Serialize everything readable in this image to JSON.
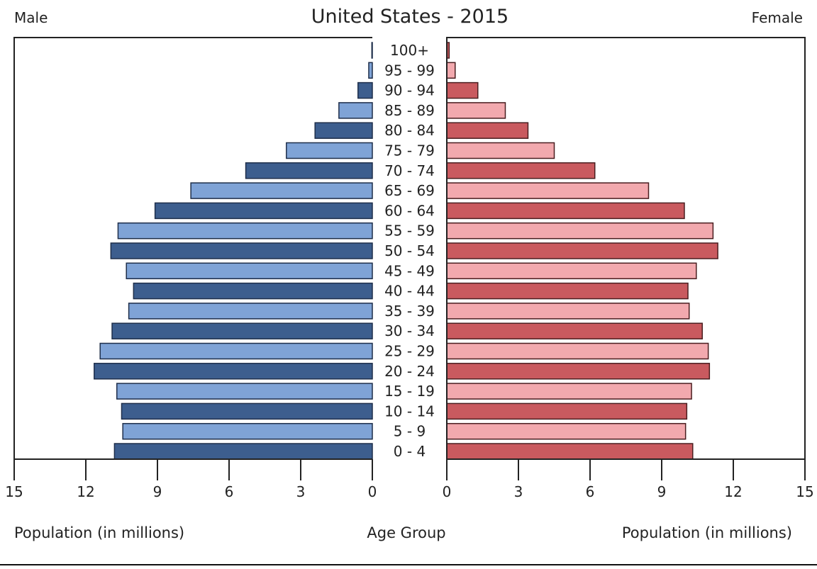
{
  "chart_data": {
    "type": "bar",
    "subtype": "population-pyramid",
    "title": "United States - 2015",
    "left_label": "Male",
    "right_label": "Female",
    "xlabel_left": "Population (in millions)",
    "xlabel_center": "Age Group",
    "xlabel_right": "Population (in millions)",
    "xlim": [
      0,
      15
    ],
    "xticks": [
      "0",
      "3",
      "6",
      "9",
      "12",
      "15"
    ],
    "categories": [
      "0 - 4",
      "5 - 9",
      "10 - 14",
      "15 - 19",
      "20 - 24",
      "25 - 29",
      "30 - 34",
      "35 - 39",
      "40 - 44",
      "45 - 49",
      "50 - 54",
      "55 - 59",
      "60 - 64",
      "65 - 69",
      "70 - 74",
      "75 - 79",
      "80 - 84",
      "85 - 89",
      "90 - 94",
      "95 - 99",
      "100+"
    ],
    "series": [
      {
        "side": "left",
        "values": [
          10.8,
          10.45,
          10.5,
          10.7,
          11.65,
          11.4,
          10.9,
          10.2,
          10.0,
          10.3,
          10.95,
          10.65,
          9.1,
          7.6,
          5.3,
          3.6,
          2.4,
          1.4,
          0.6,
          0.15,
          0.02
        ],
        "colors": [
          "#3d5e8e",
          "#7fa3d6"
        ]
      },
      {
        "side": "right",
        "values": [
          10.3,
          10.0,
          10.05,
          10.25,
          11.0,
          10.95,
          10.7,
          10.15,
          10.1,
          10.45,
          11.35,
          11.15,
          9.95,
          8.45,
          6.2,
          4.5,
          3.4,
          2.45,
          1.3,
          0.35,
          0.1
        ],
        "colors": [
          "#c95a5f",
          "#f2a9ae"
        ]
      }
    ],
    "grid": false
  }
}
